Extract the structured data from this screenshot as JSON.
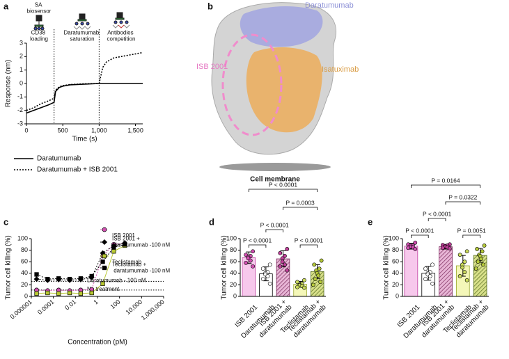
{
  "chart_data": [
    {
      "type": "line",
      "label": "a",
      "xlabel": "Time (s)",
      "ylabel": "Response (nm)",
      "x": [
        0,
        100,
        200,
        300,
        380,
        400,
        450,
        500,
        600,
        800,
        1000,
        1050,
        1100,
        1200,
        1400,
        1600
      ],
      "series": [
        {
          "name": "Daratumumab",
          "color": "#000000",
          "dash": "solid",
          "values": [
            -2.2,
            -2.0,
            -1.8,
            -1.6,
            -1.4,
            -0.6,
            -0.3,
            -0.2,
            -0.1,
            -0.05,
            0,
            0,
            0,
            0,
            0,
            0
          ]
        },
        {
          "name": "Daratumumab + ISB 2001",
          "color": "#000000",
          "dash": "dotted",
          "values": [
            -2.0,
            -1.8,
            -1.5,
            -1.3,
            -1.1,
            -0.5,
            -0.25,
            -0.15,
            -0.08,
            -0.02,
            0,
            1.2,
            1.6,
            1.9,
            2.1,
            2.3
          ]
        }
      ],
      "xlim": [
        0,
        1600
      ],
      "xticks": [
        0,
        500,
        {
          "value": 1000,
          "label": "1,000"
        },
        {
          "value": 1500,
          "label": "1,500"
        }
      ],
      "ylim": [
        -3,
        3
      ],
      "yticks": [
        -3,
        -2,
        -1,
        0,
        1,
        2,
        3
      ],
      "vlines": [
        380,
        1000
      ],
      "annotations": [
        "SA biosensor",
        "CD38 loading",
        "Daratumumab saturation",
        "Antibodies competition"
      ]
    },
    {
      "type": "line",
      "label": "c",
      "xlabel": "Concentration (pM)",
      "ylabel": "Tumor cell killing (%)",
      "xlog": true,
      "x": [
        3e-06,
        3e-05,
        0.0003,
        0.003,
        0.03,
        0.3,
        3,
        30,
        300
      ],
      "series": [
        {
          "name": "ISB 2001",
          "color": "#d04fb0",
          "dash": "dotted",
          "marker": "circle",
          "values": [
            11,
            10,
            11,
            10,
            11,
            12,
            70,
            90,
            92
          ]
        },
        {
          "name": "ISB 2001 + daratumumab -100 nM",
          "color": "#000000",
          "dash": "dotted",
          "marker": "diamond",
          "values": [
            30,
            28,
            29,
            28,
            29,
            33,
            75,
            88,
            92
          ]
        },
        {
          "name": "Teclistamab",
          "color": "#b8c832",
          "dash": "solid",
          "marker": "square",
          "values": [
            5,
            6,
            5,
            6,
            5,
            6,
            22,
            78,
            88
          ]
        },
        {
          "name": "Teclistamab + daratumumab -100 nM",
          "color": "#000000",
          "dash": "dotted",
          "marker": "square",
          "values": [
            38,
            30,
            31,
            30,
            31,
            35,
            60,
            85,
            90
          ]
        }
      ],
      "xlim": [
        1e-06,
        1000000
      ],
      "xticks": [
        1e-06,
        0.0001,
        0.01,
        1,
        100,
        {
          "value": 10000,
          "label": "10,000"
        },
        {
          "value": 1000000,
          "label": "1,000,000"
        }
      ],
      "ylim": [
        0,
        100
      ],
      "yticks": [
        0,
        20,
        40,
        60,
        80,
        100
      ],
      "hlines": [
        {
          "value": 26,
          "label": "Daratumumab - 100 nM"
        },
        {
          "value": 11,
          "label": "No treatment"
        }
      ]
    },
    {
      "type": "bar",
      "label": "d",
      "ylabel": "Tumor cell killing (%)",
      "categories": [
        "ISB 2001",
        "Daratumumab",
        "ISB 2001 + daratumumab",
        "Teclistamab",
        "Teclistamab + daratumumab"
      ],
      "values": [
        67,
        39,
        65,
        21,
        43
      ],
      "errors": [
        10,
        12,
        14,
        5,
        12
      ],
      "points": [
        [
          78,
          72,
          70,
          68,
          66,
          62,
          58,
          52
        ],
        [
          55,
          48,
          42,
          40,
          38,
          35,
          30,
          22
        ],
        [
          82,
          75,
          70,
          66,
          60,
          55,
          52,
          45
        ],
        [
          28,
          25,
          22,
          20,
          19,
          18,
          16,
          15
        ],
        [
          62,
          55,
          48,
          45,
          40,
          36,
          30,
          25,
          20
        ]
      ],
      "colors": [
        "#f7c8ec",
        "#ffffff",
        "#e8b6d6",
        "#f4f7b8",
        "#d8e08a"
      ],
      "edge_colors": [
        "#c03fa0",
        "#000000",
        "#7a2a5c",
        "#9aa82a",
        "#556b1f"
      ],
      "point_colors": [
        "#d04fb0",
        "#ffffff",
        "#c0409a",
        "#c8d85a",
        "#b5c93a"
      ],
      "hatched": [
        false,
        false,
        true,
        false,
        true
      ],
      "ylim": [
        0,
        100
      ],
      "yticks": [
        0,
        20,
        40,
        60,
        80,
        100
      ],
      "comparisons": [
        {
          "from": 0,
          "to": 1,
          "label": "P < 0.0001"
        },
        {
          "from": 1,
          "to": 2,
          "label": "P < 0.0001"
        },
        {
          "from": 3,
          "to": 4,
          "label": "P < 0.0001"
        },
        {
          "from": 2,
          "to": 4,
          "label": "P = 0.0003"
        },
        {
          "from": 0,
          "to": 4,
          "label": "P < 0.0001"
        }
      ]
    },
    {
      "type": "bar",
      "label": "e",
      "ylabel": "Tumor cell killing (%)",
      "categories": [
        "ISB 2001",
        "Daratumumab",
        "ISB 2001 + daratumumab",
        "Teclistamab",
        "Teclistamab + daratumumab"
      ],
      "values": [
        87,
        40,
        86,
        53,
        71
      ],
      "errors": [
        5,
        12,
        4,
        18,
        12
      ],
      "points": [
        [
          93,
          90,
          88,
          88,
          86,
          85,
          84,
          82
        ],
        [
          55,
          48,
          42,
          40,
          38,
          35,
          30,
          22
        ],
        [
          90,
          89,
          88,
          87,
          86,
          85,
          84,
          83
        ],
        [
          78,
          72,
          60,
          55,
          50,
          42,
          35,
          28
        ],
        [
          88,
          82,
          78,
          72,
          70,
          65,
          60,
          55,
          48
        ]
      ],
      "colors": [
        "#f7c8ec",
        "#ffffff",
        "#e8b6d6",
        "#f4f7b8",
        "#d8e08a"
      ],
      "edge_colors": [
        "#c03fa0",
        "#000000",
        "#7a2a5c",
        "#9aa82a",
        "#556b1f"
      ],
      "point_colors": [
        "#d04fb0",
        "#ffffff",
        "#c0409a",
        "#c8d85a",
        "#b5c93a"
      ],
      "hatched": [
        false,
        false,
        true,
        false,
        true
      ],
      "ylim": [
        0,
        100
      ],
      "yticks": [
        0,
        20,
        40,
        60,
        80,
        100
      ],
      "comparisons": [
        {
          "from": 0,
          "to": 1,
          "label": "P < 0.0001"
        },
        {
          "from": 1,
          "to": 2,
          "label": "P < 0.0001"
        },
        {
          "from": 3,
          "to": 4,
          "label": "P = 0.0051"
        },
        {
          "from": 2,
          "to": 4,
          "label": "P = 0.0322"
        },
        {
          "from": 0,
          "to": 4,
          "label": "P = 0.0164"
        }
      ]
    }
  ],
  "panel_b": {
    "label": "b",
    "labels": [
      "Daratumumab",
      "ISB 2001",
      "Isatuximab"
    ],
    "caption": "Cell membrane"
  }
}
